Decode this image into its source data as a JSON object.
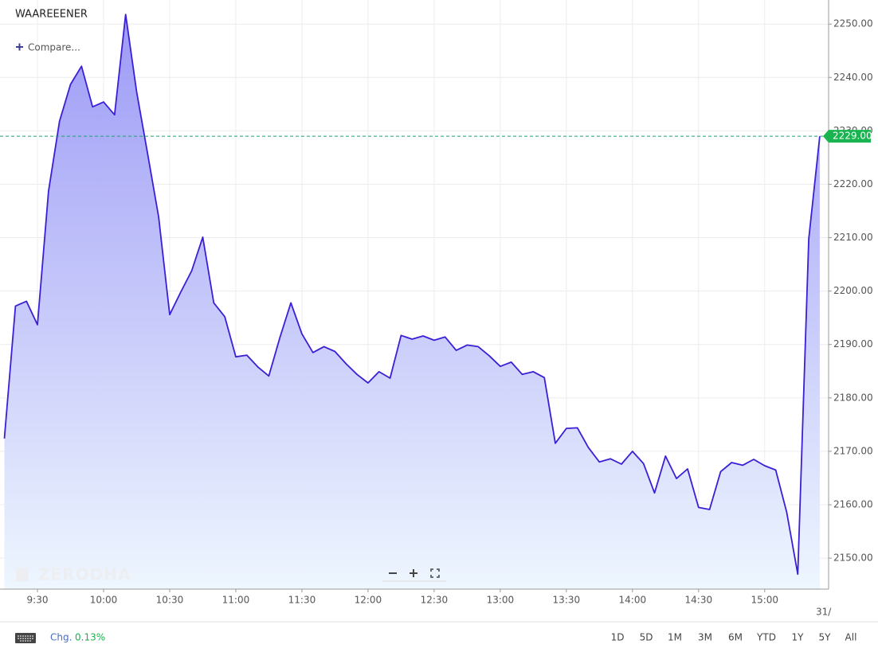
{
  "chart_data": {
    "type": "area",
    "title": "WAAREEENER",
    "x": [
      "9:15",
      "9:20",
      "9:25",
      "9:30",
      "9:35",
      "9:40",
      "9:45",
      "9:50",
      "9:55",
      "10:00",
      "10:05",
      "10:10",
      "10:15",
      "10:20",
      "10:25",
      "10:30",
      "10:35",
      "10:40",
      "10:45",
      "10:50",
      "10:55",
      "11:00",
      "11:05",
      "11:10",
      "11:15",
      "11:20",
      "11:25",
      "11:30",
      "11:35",
      "11:40",
      "11:45",
      "11:50",
      "11:55",
      "12:00",
      "12:05",
      "12:10",
      "12:15",
      "12:20",
      "12:25",
      "12:30",
      "12:35",
      "12:40",
      "12:45",
      "12:50",
      "12:55",
      "13:00",
      "13:05",
      "13:10",
      "13:15",
      "13:20",
      "13:25",
      "13:30",
      "13:35",
      "13:40",
      "13:45",
      "13:50",
      "13:55",
      "14:00",
      "14:05",
      "14:10",
      "14:15",
      "14:20",
      "14:25",
      "14:30",
      "14:35",
      "14:40",
      "14:45",
      "14:50",
      "14:55",
      "15:00",
      "15:05",
      "15:10",
      "15:15",
      "15:20",
      "15:25"
    ],
    "values": [
      2172.4,
      2197.2,
      2198.1,
      2193.7,
      2218.7,
      2231.8,
      2238.7,
      2242.1,
      2234.5,
      2235.4,
      2233.0,
      2251.8,
      2237.3,
      2225.7,
      2213.9,
      2195.6,
      2199.8,
      2203.8,
      2210.1,
      2197.8,
      2195.2,
      2187.7,
      2188.0,
      2185.8,
      2184.1,
      2191.3,
      2197.8,
      2192.0,
      2188.5,
      2189.6,
      2188.7,
      2186.4,
      2184.4,
      2182.8,
      2184.9,
      2183.7,
      2191.7,
      2191.0,
      2191.6,
      2190.8,
      2191.4,
      2188.9,
      2189.9,
      2189.6,
      2187.9,
      2185.9,
      2186.7,
      2184.4,
      2184.9,
      2183.8,
      2171.5,
      2174.3,
      2174.4,
      2170.7,
      2168.0,
      2168.6,
      2167.6,
      2170.0,
      2167.7,
      2162.2,
      2169.1,
      2164.9,
      2166.7,
      2159.5,
      2159.1,
      2166.2,
      2167.9,
      2167.4,
      2168.5,
      2167.3,
      2166.5,
      2158.6,
      2147.0,
      2209.8,
      2229.0
    ],
    "color": "#3a1fd6",
    "fill_gradient": [
      "#9d9af6",
      "#eef6fe"
    ],
    "xlim": [
      "9:13",
      "15:29"
    ],
    "xticks": [
      "9:30",
      "10:00",
      "10:30",
      "11:00",
      "11:30",
      "12:00",
      "12:30",
      "13:00",
      "13:30",
      "14:00",
      "14:30",
      "15:00"
    ],
    "date_label": "31/",
    "ylim": [
      2144.2,
      2254.5
    ],
    "yticks": [
      {
        "value": 2150,
        "label": "2150.00"
      },
      {
        "value": 2160,
        "label": "2160.00"
      },
      {
        "value": 2170,
        "label": "2170.00"
      },
      {
        "value": 2180,
        "label": "2180.00"
      },
      {
        "value": 2190,
        "label": "2190.00"
      },
      {
        "value": 2200,
        "label": "2200.00"
      },
      {
        "value": 2210,
        "label": "2210.00"
      },
      {
        "value": 2220,
        "label": "2220.00"
      },
      {
        "value": 2230,
        "label": "2230.00"
      },
      {
        "value": 2240,
        "label": "2240.00"
      },
      {
        "value": 2250,
        "label": "2250.00"
      }
    ],
    "last_price": {
      "value": 2229,
      "label": "2229.00"
    },
    "grid": true
  },
  "toolbar": {
    "compare": "Compare...",
    "watermark": "ZERODHA"
  },
  "footer": {
    "change_label": "Chg.",
    "change_value": "0.13%",
    "ranges": [
      "1D",
      "5D",
      "1M",
      "3M",
      "6M",
      "YTD",
      "1Y",
      "5Y",
      "All"
    ]
  }
}
